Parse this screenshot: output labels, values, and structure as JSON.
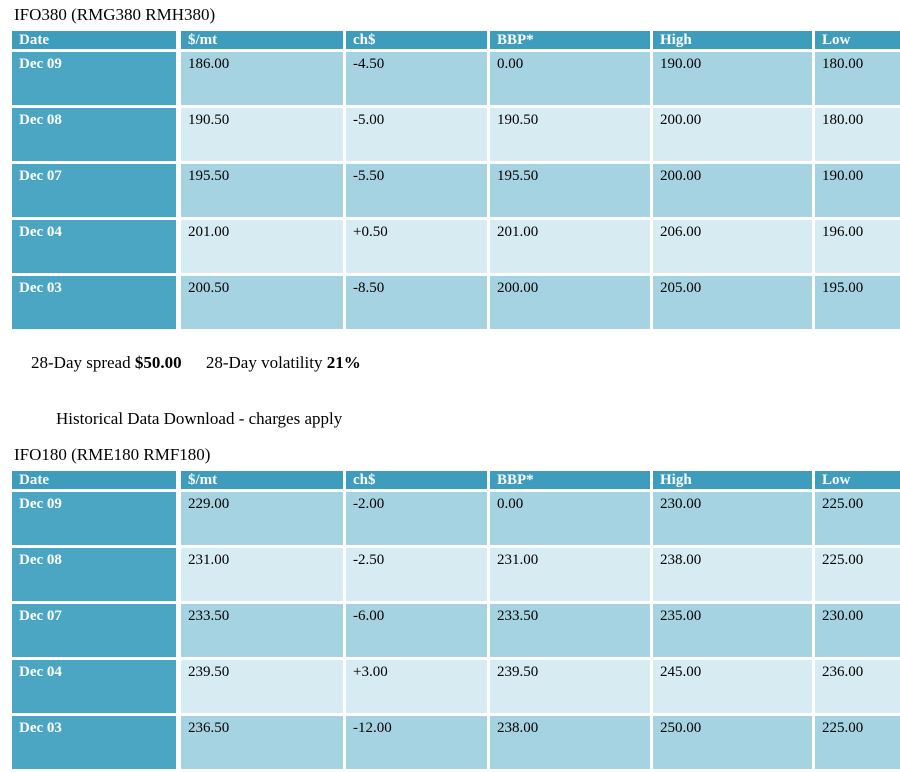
{
  "colors": {
    "header_bg": "#3e9dbd",
    "date_cell_bg": "#4aa6c3",
    "row_dark_bg": "#a6d3e1",
    "row_light_bg": "#d7ebf3",
    "header_text": "#ffffff",
    "body_text": "#000000"
  },
  "tables": [
    {
      "title": "IFO380 (RMG380 RMH380)",
      "columns": [
        "Date",
        "$/mt",
        "ch$",
        "BBP*",
        "High",
        "Low"
      ],
      "rows": [
        {
          "date": "Dec 09",
          "values": [
            "186.00",
            "-4.50",
            "0.00",
            "190.00",
            "180.00"
          ]
        },
        {
          "date": "Dec 08",
          "values": [
            "190.50",
            "-5.00",
            "190.50",
            "200.00",
            "180.00"
          ]
        },
        {
          "date": "Dec 07",
          "values": [
            "195.50",
            "-5.50",
            "195.50",
            "200.00",
            "190.00"
          ]
        },
        {
          "date": "Dec 04",
          "values": [
            "201.00",
            "+0.50",
            "201.00",
            "206.00",
            "196.00"
          ]
        },
        {
          "date": "Dec 03",
          "values": [
            "200.50",
            "-8.50",
            "200.00",
            "205.00",
            "195.00"
          ]
        }
      ]
    },
    {
      "title": "IFO180 (RME180 RMF180)",
      "columns": [
        "Date",
        "$/mt",
        "ch$",
        "BBP*",
        "High",
        "Low"
      ],
      "rows": [
        {
          "date": "Dec 09",
          "values": [
            "229.00",
            "-2.00",
            "0.00",
            "230.00",
            "225.00"
          ]
        },
        {
          "date": "Dec 08",
          "values": [
            "231.00",
            "-2.50",
            "231.00",
            "238.00",
            "225.00"
          ]
        },
        {
          "date": "Dec 07",
          "values": [
            "233.50",
            "-6.00",
            "233.50",
            "235.00",
            "230.00"
          ]
        },
        {
          "date": "Dec 04",
          "values": [
            "239.50",
            "+3.00",
            "239.50",
            "245.00",
            "236.00"
          ]
        },
        {
          "date": "Dec 03",
          "values": [
            "236.50",
            "-12.00",
            "238.00",
            "250.00",
            "225.00"
          ]
        }
      ]
    }
  ],
  "stats": {
    "spread_label": "28-Day spread",
    "spread_value": "$50.00",
    "volatility_label": "28-Day volatility",
    "volatility_value": "21%"
  },
  "download": {
    "label": "Historical Data Download - charges apply"
  }
}
